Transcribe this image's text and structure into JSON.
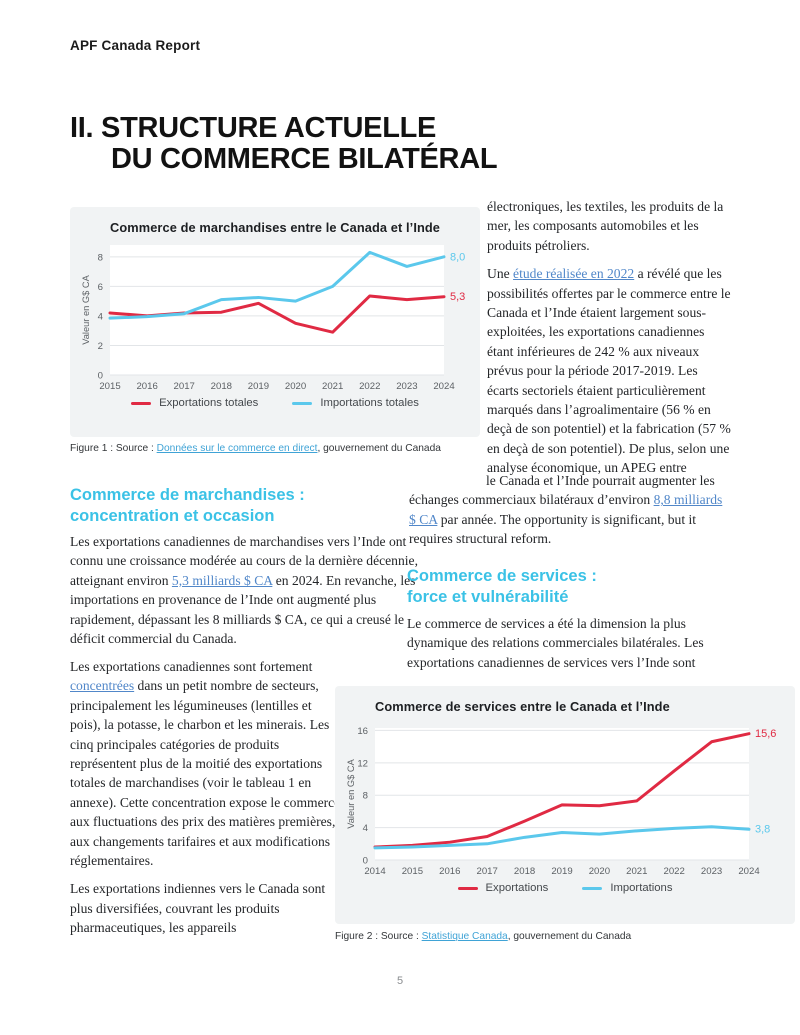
{
  "page": {
    "header": "APF Canada Report",
    "title_line1": "II. STRUCTURE ACTUELLE",
    "title_line2": "DU COMMERCE BILATÉRAL",
    "page_number": "5"
  },
  "colors": {
    "red": "#e02a43",
    "cyan": "#5bc8ec",
    "heading_cyan": "#3bc2e6",
    "link_blue": "#5187c9",
    "panel_bg": "#f1f3f4"
  },
  "sections": {
    "heading1_line1": "Commerce de marchandises :",
    "heading1_line2": "concentration et occasion",
    "heading2_line1": "Commerce de services :",
    "heading2_line2": "force et vulnérabilité"
  },
  "paragraphs": {
    "right_p1": [
      {
        "t": "électroniques, les textiles, les produits de la mer, les composants automobiles et les produits pétroliers."
      }
    ],
    "right_p2": [
      {
        "t": "Une "
      },
      {
        "t": "étude réalisée en 2022",
        "link": true
      },
      {
        "t": " a révélé que les possibilités offertes par le commerce entre le Canada et l’Inde étaient largement sous-exploitées, les exportations canadiennes étant inférieures de 242 % aux niveaux prévus pour la période 2017-2019. Les écarts sectoriels étaient particulièrement marqués dans l’agroalimentaire (56 % en deçà de son potentiel) et la fabrication (57 % en deçà de son potentiel). De plus, selon une analyse économique, un APEG entre"
      }
    ],
    "right_p3_wide": [
      {
        "t": "le Canada et l’Inde pourrait augmenter les échanges commerciaux bilatéraux d’environ "
      },
      {
        "t": "8,8 milliards $ CA",
        "link": true
      },
      {
        "t": " par année. The opportunity is significant, but it requires structural reform."
      }
    ],
    "left_p1": [
      {
        "t": "Les exportations canadiennes de marchandises vers l’Inde ont connu une croissance modérée au cours de la dernière décennie, atteignant environ "
      },
      {
        "t": "5,3 milliards $ CA",
        "link": true
      },
      {
        "t": " en 2024. En revanche, les importations en provenance de l’Inde ont augmenté plus rapidement, dépassant les 8 milliards $ CA, ce qui a creusé le déficit commercial du Canada."
      }
    ],
    "left_p2": [
      {
        "t": "Les exportations canadiennes sont fortement "
      },
      {
        "t": "concentrées",
        "link": true
      },
      {
        "t": " dans un petit nombre de secteurs, principalement les légumineuses (lentilles et pois), la potasse, le charbon et les minerais. Les cinq principales catégories de produits représentent plus de la moitié des exportations totales de marchandises (voir le tableau 1 en annexe). Cette concentration expose le commerce aux fluctuations des prix des matières premières, aux changements tarifaires et aux modifications réglementaires."
      }
    ],
    "left_p3": [
      {
        "t": "Les exportations indiennes vers le Canada sont plus diversifiées, couvrant les produits pharmaceutiques, les appareils"
      }
    ],
    "services_p1": [
      {
        "t": "Le commerce de services a été la dimension la plus dynamique des relations commerciales bilatérales. Les exportations canadiennes de services vers l’Inde sont"
      }
    ]
  },
  "figure1": {
    "legend": [
      {
        "label": "Exportations totales",
        "color": "red"
      },
      {
        "label": "Importations totales",
        "color": "cyan"
      }
    ],
    "caption_runs": [
      {
        "t": "Figure 1 : Source : "
      },
      {
        "t": "Données sur le commerce en direct",
        "link": true
      },
      {
        "t": ", gouvernement du Canada"
      }
    ]
  },
  "figure2": {
    "legend": [
      {
        "label": "Exportations",
        "color": "red"
      },
      {
        "label": "Importations",
        "color": "cyan"
      }
    ],
    "caption_runs": [
      {
        "t": "Figure 2 : Source : "
      },
      {
        "t": "Statistique Canada",
        "link": true
      },
      {
        "t": ", gouvernement du Canada"
      }
    ]
  },
  "chart_data": [
    {
      "type": "line",
      "title": "Commerce de marchandises entre le Canada et l’Inde",
      "ylabel": "Valeur en G$ CA",
      "categories": [
        "2015",
        "2016",
        "2017",
        "2018",
        "2019",
        "2020",
        "2021",
        "2022",
        "2023",
        "2024"
      ],
      "yticks": [
        0,
        2,
        4,
        6,
        8
      ],
      "ylim": [
        0,
        8.8
      ],
      "grid": true,
      "legend_position": "bottom",
      "series": [
        {
          "name": "Exportations totales",
          "color": "red",
          "values": [
            4.2,
            4.0,
            4.2,
            4.25,
            4.85,
            3.5,
            2.9,
            5.35,
            5.1,
            5.3
          ],
          "end_label": "5,3"
        },
        {
          "name": "Importations totales",
          "color": "cyan",
          "values": [
            3.85,
            3.95,
            4.15,
            5.1,
            5.25,
            5.0,
            6.0,
            8.3,
            7.35,
            8.0
          ],
          "end_label": "8,0"
        }
      ]
    },
    {
      "type": "line",
      "title": "Commerce de services entre le Canada et l’Inde",
      "ylabel": "Valeur en G$ CA",
      "categories": [
        "2014",
        "2015",
        "2016",
        "2017",
        "2018",
        "2019",
        "2020",
        "2021",
        "2022",
        "2023",
        "2024"
      ],
      "yticks": [
        0,
        4,
        8,
        12,
        16
      ],
      "ylim": [
        0,
        16.3
      ],
      "grid": true,
      "legend_position": "bottom",
      "series": [
        {
          "name": "Exportations",
          "color": "red",
          "values": [
            1.6,
            1.8,
            2.2,
            2.9,
            4.8,
            6.8,
            6.7,
            7.3,
            11.0,
            14.6,
            15.6
          ],
          "end_label": "15,6"
        },
        {
          "name": "Importations",
          "color": "cyan",
          "values": [
            1.5,
            1.6,
            1.8,
            2.0,
            2.8,
            3.4,
            3.2,
            3.6,
            3.9,
            4.1,
            3.8
          ],
          "end_label": "3,8"
        }
      ]
    }
  ]
}
